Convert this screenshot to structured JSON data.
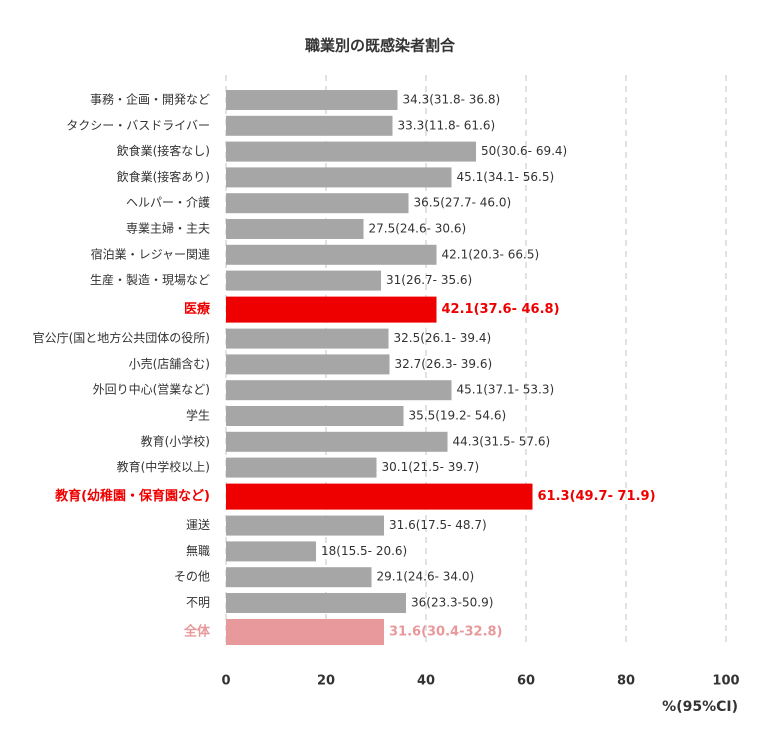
{
  "chart_data": {
    "type": "barh",
    "title": "職業別の既感染者割合",
    "x_label": "%(95%CI)",
    "categories": [
      "事務・企画・開発など",
      "タクシー・バスドライバー",
      "飲食業(接客なし)",
      "飲食業(接客あり)",
      "ヘルパー・介護",
      "専業主婦・主夫",
      "宿泊業・レジャー関連",
      "生産・製造・現場など",
      "医療",
      "官公庁(国と地方公共団体の役所)",
      "小売(店舗含む)",
      "外回り中心(営業など)",
      "学生",
      "教育(小学校)",
      "教育(中学校以上)",
      "教育(幼稚園・保育園など)",
      "運送",
      "無職",
      "その他",
      "不明",
      "全体"
    ],
    "values": [
      34.3,
      33.3,
      50,
      45.1,
      36.5,
      27.5,
      42.1,
      31,
      42.1,
      32.5,
      32.7,
      45.1,
      35.5,
      44.3,
      30.1,
      61.3,
      31.6,
      18,
      29.1,
      36,
      31.6
    ],
    "value_labels": [
      "34.3(31.8- 36.8)",
      "33.3(11.8- 61.6)",
      "50(30.6- 69.4)",
      "45.1(34.1- 56.5)",
      "36.5(27.7- 46.0)",
      "27.5(24.6- 30.6)",
      "42.1(20.3- 66.5)",
      "31(26.7- 35.6)",
      "42.1(37.6- 46.8)",
      "32.5(26.1- 39.4)",
      "32.7(26.3- 39.6)",
      "45.1(37.1- 53.3)",
      "35.5(19.2- 54.6)",
      "44.3(31.5- 57.6)",
      "30.1(21.5- 39.7)",
      "61.3(49.7- 71.9)",
      "31.6(17.5- 48.7)",
      "18(15.5- 20.6)",
      "29.1(24.6- 34.0)",
      "36(23.3-50.9)",
      "31.6(30.4-32.8)"
    ],
    "colors": [
      "#a6a6a6",
      "#a6a6a6",
      "#a6a6a6",
      "#a6a6a6",
      "#a6a6a6",
      "#a6a6a6",
      "#a6a6a6",
      "#a6a6a6",
      "#ee0000",
      "#a6a6a6",
      "#a6a6a6",
      "#a6a6a6",
      "#a6a6a6",
      "#a6a6a6",
      "#a6a6a6",
      "#ee0000",
      "#a6a6a6",
      "#a6a6a6",
      "#a6a6a6",
      "#a6a6a6",
      "#e8999b"
    ],
    "xlim": [
      0,
      100
    ],
    "xticks": [
      0,
      20,
      40,
      60,
      80,
      100
    ],
    "grid": true
  }
}
